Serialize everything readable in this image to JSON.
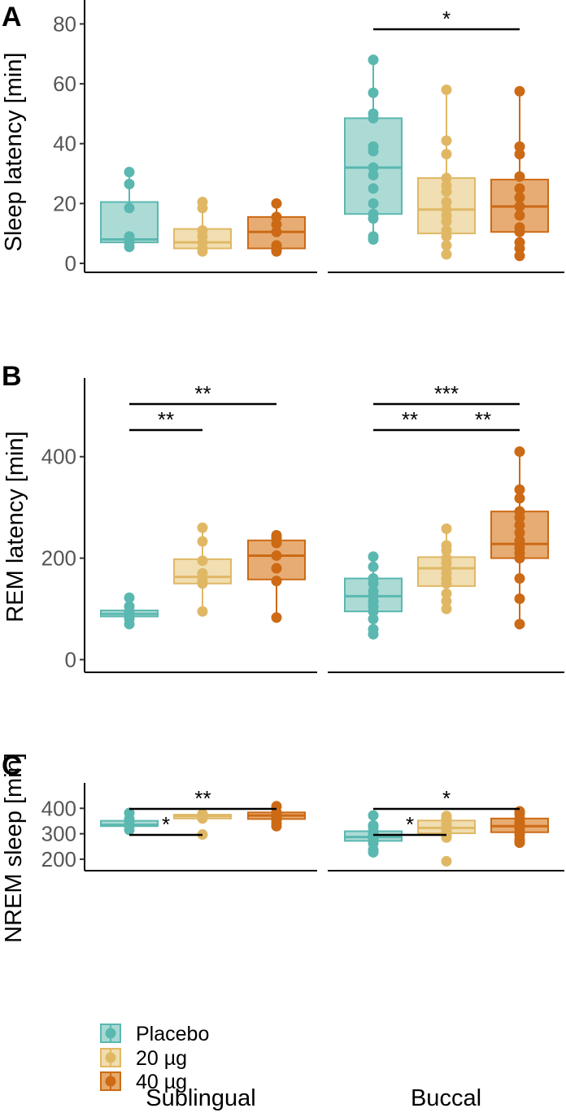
{
  "chart_data": [
    {
      "type": "box",
      "panel_label": "A",
      "ylabel": "Sleep latency [min]",
      "ylim": [
        -3,
        88
      ],
      "yticks": [
        0,
        20,
        40,
        60,
        80
      ],
      "facets": [
        "Sublingual",
        "Buccal"
      ],
      "categories": [
        "Placebo",
        "20 µg",
        "40 µg"
      ],
      "boxes": [
        {
          "facet": "Sublingual",
          "group": "Placebo",
          "q1": 7,
          "median": 8,
          "q3": 20.5,
          "whisker_low": 5,
          "whisker_high": 30.5,
          "points": [
            30.5,
            26.5,
            18.5,
            9,
            8,
            7,
            5.5
          ]
        },
        {
          "facet": "Sublingual",
          "group": "20 µg",
          "q1": 5,
          "median": 7,
          "q3": 11.5,
          "whisker_low": 4,
          "whisker_high": 20.5,
          "points": [
            20.5,
            18.5,
            11,
            9,
            7,
            5,
            4
          ]
        },
        {
          "facet": "Sublingual",
          "group": "40 µg",
          "q1": 5,
          "median": 10.5,
          "q3": 15.5,
          "whisker_low": 4,
          "whisker_high": 20,
          "points": [
            20,
            15.5,
            13,
            10.5,
            6,
            4,
            4.5
          ]
        },
        {
          "facet": "Buccal",
          "group": "Placebo",
          "q1": 16.5,
          "median": 32,
          "q3": 48.5,
          "whisker_low": 8,
          "whisker_high": 68,
          "points": [
            68,
            57,
            50,
            48.5,
            39,
            37.5,
            32,
            29.5,
            25,
            20,
            16.5,
            15,
            9,
            8
          ]
        },
        {
          "facet": "Buccal",
          "group": "20 µg",
          "q1": 10,
          "median": 18,
          "q3": 28.5,
          "whisker_low": 3,
          "whisker_high": 58,
          "points": [
            58,
            41,
            36.5,
            28.5,
            26,
            24,
            20.5,
            18,
            16,
            14,
            11,
            9,
            6,
            3
          ]
        },
        {
          "facet": "Buccal",
          "group": "40 µg",
          "q1": 10.5,
          "median": 19,
          "q3": 28,
          "whisker_low": 2.5,
          "whisker_high": 57.5,
          "points": [
            57.5,
            39,
            36.5,
            29,
            25,
            22,
            19,
            16,
            12,
            10.5,
            7,
            5,
            2.5
          ]
        }
      ],
      "significance": [
        {
          "facet": "Buccal",
          "from": "Placebo",
          "to": "40 µg",
          "label": "*",
          "level": 1
        }
      ]
    },
    {
      "type": "box",
      "panel_label": "B",
      "ylabel": "REM latency [min]",
      "ylim": [
        -25,
        555
      ],
      "yticks": [
        0,
        200,
        400
      ],
      "facets": [
        "Sublingual",
        "Buccal"
      ],
      "categories": [
        "Placebo",
        "20 µg",
        "40 µg"
      ],
      "boxes": [
        {
          "facet": "Sublingual",
          "group": "Placebo",
          "q1": 85,
          "median": 90,
          "q3": 97,
          "whisker_low": 70,
          "whisker_high": 122,
          "points": [
            122,
            105,
            95,
            90,
            85,
            80,
            70
          ]
        },
        {
          "facet": "Sublingual",
          "group": "20 µg",
          "q1": 150,
          "median": 163,
          "q3": 198,
          "whisker_low": 95,
          "whisker_high": 260,
          "points": [
            260,
            233,
            195,
            170,
            155,
            150,
            95
          ]
        },
        {
          "facet": "Sublingual",
          "group": "40 µg",
          "q1": 158,
          "median": 205,
          "q3": 235,
          "whisker_low": 83,
          "whisker_high": 245,
          "points": [
            245,
            240,
            230,
            205,
            180,
            155,
            83
          ]
        },
        {
          "facet": "Buccal",
          "group": "Placebo",
          "q1": 95,
          "median": 125,
          "q3": 160,
          "whisker_low": 50,
          "whisker_high": 203,
          "points": [
            203,
            183,
            160,
            150,
            135,
            125,
            115,
            105,
            95,
            80,
            60,
            50
          ]
        },
        {
          "facet": "Buccal",
          "group": "20 µg",
          "q1": 145,
          "median": 180,
          "q3": 202,
          "whisker_low": 100,
          "whisker_high": 258,
          "points": [
            258,
            225,
            215,
            200,
            190,
            180,
            170,
            160,
            150,
            130,
            115,
            100
          ]
        },
        {
          "facet": "Buccal",
          "group": "40 µg",
          "q1": 200,
          "median": 228,
          "q3": 292,
          "whisker_low": 70,
          "whisker_high": 410,
          "points": [
            410,
            335,
            318,
            292,
            280,
            265,
            250,
            235,
            228,
            220,
            210,
            200,
            160,
            120,
            70
          ]
        }
      ],
      "significance": [
        {
          "facet": "Sublingual",
          "from": "Placebo",
          "to": "20 µg",
          "label": "**",
          "level": 1
        },
        {
          "facet": "Sublingual",
          "from": "Placebo",
          "to": "40 µg",
          "label": "**",
          "level": 2
        },
        {
          "facet": "Buccal",
          "from": "Placebo",
          "to": "20 µg",
          "label": "**",
          "level": 1
        },
        {
          "facet": "Buccal",
          "from": "20 µg",
          "to": "40 µg",
          "label": "**",
          "level": 1
        },
        {
          "facet": "Buccal",
          "from": "Placebo",
          "to": "40 µg",
          "label": "***",
          "level": 2
        }
      ]
    },
    {
      "type": "box",
      "panel_label": "C",
      "ylabel": "NREM sleep [min]",
      "ylim": [
        155,
        500
      ],
      "yticks": [
        200,
        300,
        400
      ],
      "facets": [
        "Sublingual",
        "Buccal"
      ],
      "categories": [
        "Placebo",
        "20 µg",
        "40 µg"
      ],
      "boxes": [
        {
          "facet": "Sublingual",
          "group": "Placebo",
          "q1": 330,
          "median": 335,
          "q3": 351,
          "whisker_low": 315,
          "whisker_high": 382,
          "points": [
            382,
            358,
            345,
            335,
            330,
            315
          ]
        },
        {
          "facet": "Sublingual",
          "group": "20 µg",
          "q1": 360,
          "median": 370,
          "q3": 375,
          "whisker_low": 360,
          "whisker_high": 378,
          "points": [
            378,
            375,
            370,
            365,
            360,
            297
          ]
        },
        {
          "facet": "Sublingual",
          "group": "40 µg",
          "q1": 358,
          "median": 372,
          "q3": 384,
          "whisker_low": 330,
          "whisker_high": 408,
          "points": [
            408,
            384,
            378,
            365,
            355,
            342,
            330
          ]
        },
        {
          "facet": "Buccal",
          "group": "Placebo",
          "q1": 272,
          "median": 287,
          "q3": 310,
          "whisker_low": 227,
          "whisker_high": 372,
          "points": [
            372,
            333,
            325,
            310,
            300,
            292,
            287,
            280,
            272,
            262,
            237,
            227
          ]
        },
        {
          "facet": "Buccal",
          "group": "20 µg",
          "q1": 302,
          "median": 323,
          "q3": 352,
          "whisker_low": 285,
          "whisker_high": 370,
          "points": [
            370,
            360,
            352,
            340,
            330,
            323,
            315,
            305,
            295,
            285,
            192
          ]
        },
        {
          "facet": "Buccal",
          "group": "40 µg",
          "q1": 306,
          "median": 330,
          "q3": 360,
          "whisker_low": 265,
          "whisker_high": 388,
          "points": [
            388,
            378,
            360,
            345,
            335,
            330,
            320,
            306,
            295,
            278,
            270,
            265
          ]
        }
      ],
      "significance": [
        {
          "facet": "Sublingual",
          "from": "Placebo",
          "to": "20 µg",
          "label": "*",
          "level": 1
        },
        {
          "facet": "Sublingual",
          "from": "Placebo",
          "to": "40 µg",
          "label": "**",
          "level": 2
        },
        {
          "facet": "Buccal",
          "from": "Placebo",
          "to": "20 µg",
          "label": "*",
          "level": 1
        },
        {
          "facet": "Buccal",
          "from": "Placebo",
          "to": "40 µg",
          "label": "*",
          "level": 2
        }
      ],
      "legend": {
        "location": "bottom-left",
        "entries": [
          "Placebo",
          "20 µg",
          "40 µg"
        ]
      }
    }
  ],
  "x_group_labels": [
    "Sublingual",
    "Buccal"
  ],
  "colors": {
    "Placebo": {
      "stroke": "#5ab8b0",
      "fill": "#a8d9d4"
    },
    "20 µg": {
      "stroke": "#e0b865",
      "fill": "#f0dcae"
    },
    "40 µg": {
      "stroke": "#cc6a15",
      "fill": "#e6a86c"
    }
  }
}
